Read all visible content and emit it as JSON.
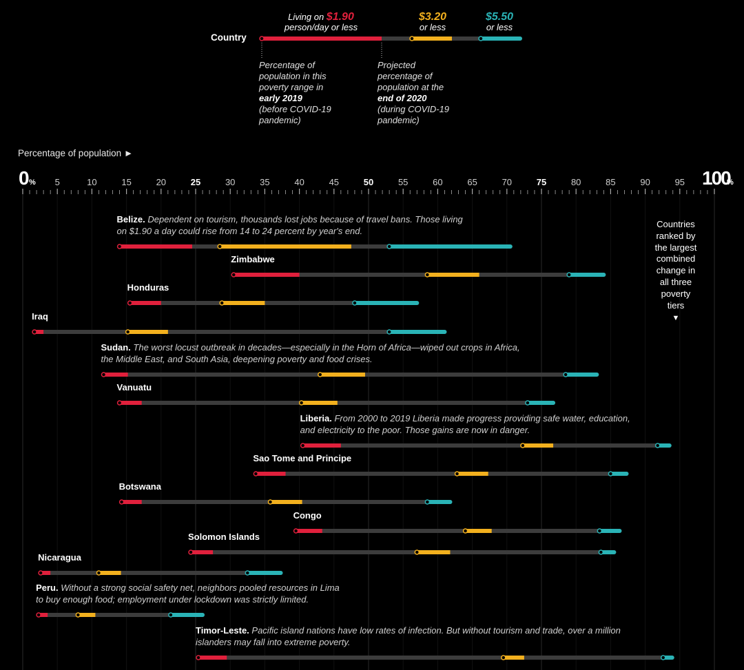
{
  "legend": {
    "country_label": "Country",
    "tier1_prefix": "Living on ",
    "tier1_amount": "$1.90",
    "tier1_suffix": "person/day or less",
    "tier2_amount": "$3.20",
    "tier2_suffix": "or less",
    "tier3_amount": "$5.50",
    "tier3_suffix": "or less",
    "start_note": [
      "Percentage of",
      "population in this",
      "poverty range in",
      "early 2019",
      "(before COVID-19",
      "pandemic)"
    ],
    "end_note": [
      "Projected",
      "percentage of",
      "population at the",
      "end of 2020",
      "(during COVID-19",
      "pandemic)"
    ]
  },
  "axis": {
    "title": "Percentage of population ►",
    "min_label": "0",
    "max_label": "100",
    "unit": "%"
  },
  "rank_note": {
    "lines": [
      "Countries",
      "ranked by",
      "the largest",
      "combined",
      "change in",
      "all three",
      "poverty",
      "tiers"
    ],
    "arrow": "▼"
  },
  "colors": {
    "tier1": "#e0203c",
    "tier2": "#f2b01e",
    "tier3": "#2ab3b6",
    "track": "#3c3c3c",
    "background": "#000000"
  },
  "chart_data": {
    "type": "range-dot",
    "xlim": [
      0,
      100
    ],
    "ticks": [
      0,
      5,
      10,
      15,
      20,
      25,
      30,
      35,
      40,
      45,
      50,
      55,
      60,
      65,
      70,
      75,
      80,
      85,
      90,
      95,
      100
    ],
    "tick_labels": [
      "0%",
      "5",
      "10",
      "15",
      "20",
      "25",
      "30",
      "35",
      "40",
      "45",
      "50",
      "55",
      "60",
      "65",
      "70",
      "75",
      "80",
      "85",
      "90",
      "95",
      "100%"
    ],
    "series": [
      {
        "name": "Living on $1.90 person/day or less"
      },
      {
        "name": "$3.20 or less"
      },
      {
        "name": "$5.50 or less"
      }
    ],
    "countries": [
      {
        "name": "Belize",
        "note": "Dependent on tourism, thousands lost jobs because of travel bans. Those living",
        "note2": "on $1.90 a day could rise from 14 to 24 percent by year's end.",
        "t190": [
          14,
          24.5
        ],
        "t320": [
          28.5,
          47.5
        ],
        "t550": [
          53,
          70.5
        ]
      },
      {
        "name": "Zimbabwe",
        "t190": [
          30.5,
          40
        ],
        "t320": [
          58.5,
          66
        ],
        "t550": [
          79,
          84
        ]
      },
      {
        "name": "Honduras",
        "t190": [
          15.5,
          20
        ],
        "t320": [
          28.8,
          35
        ],
        "t550": [
          48,
          57
        ]
      },
      {
        "name": "Iraq",
        "t190": [
          1.7,
          3
        ],
        "t320": [
          15.2,
          21
        ],
        "t550": [
          53,
          61
        ]
      },
      {
        "name": "Sudan",
        "note": "The worst locust outbreak in decades—especially in the Horn of Africa—wiped out crops in Africa,",
        "note2": "the Middle East, and South Asia, deepening poverty and food crises.",
        "t190": [
          11.7,
          15.2
        ],
        "t320": [
          43,
          49.5
        ],
        "t550": [
          78.5,
          83
        ]
      },
      {
        "name": "Vanuatu",
        "t190": [
          14,
          17.2
        ],
        "t320": [
          40.3,
          45.5
        ],
        "t550": [
          73,
          76.7
        ]
      },
      {
        "name": "Liberia",
        "note": "From 2000 to 2019 Liberia made progress providing safe water, education,",
        "note2": "and electricity to the poor. Those gains are now in danger.",
        "t190": [
          40.5,
          46
        ],
        "t320": [
          72.3,
          76.7
        ],
        "t550": [
          91.8,
          93.5
        ]
      },
      {
        "name": "Sao Tome and Principe",
        "t190": [
          33.7,
          38
        ],
        "t320": [
          62.8,
          67.3
        ],
        "t550": [
          85,
          87.3
        ]
      },
      {
        "name": "Botswana",
        "t190": [
          14.3,
          17.2
        ],
        "t320": [
          35.8,
          40.4
        ],
        "t550": [
          58.5,
          61.8
        ]
      },
      {
        "name": "Congo",
        "t190": [
          39.5,
          43.3
        ],
        "t320": [
          64,
          67.8
        ],
        "t550": [
          83.4,
          86.3
        ]
      },
      {
        "name": "Solomon Islands",
        "t190": [
          24.3,
          27.5
        ],
        "t320": [
          57,
          61.8
        ],
        "t550": [
          83.6,
          85.5
        ]
      },
      {
        "name": "Nicaragua",
        "t190": [
          2.6,
          4
        ],
        "t320": [
          11,
          14.2
        ],
        "t550": [
          32.5,
          37.3
        ]
      },
      {
        "name": "Peru",
        "note": "Without a strong social safety net, neighbors pooled resources in Lima",
        "note2": "to buy enough food; employment under lockdown was strictly limited.",
        "t190": [
          2.3,
          3.6
        ],
        "t320": [
          8,
          10.5
        ],
        "t550": [
          21.4,
          26
        ]
      },
      {
        "name": "Timor-Leste",
        "note": "Pacific island nations have low rates of infection. But without tourism and trade, over a million",
        "note2": "islanders may fall into extreme poverty.",
        "t190": [
          25.4,
          29.5
        ],
        "t320": [
          69.5,
          72.5
        ],
        "t550": [
          92.6,
          93.9
        ]
      }
    ]
  }
}
